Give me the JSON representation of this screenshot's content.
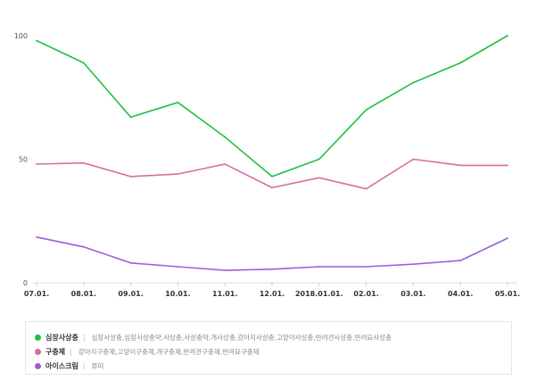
{
  "chart_data": {
    "type": "line",
    "categories": [
      "07.01.",
      "08.01.",
      "09.01.",
      "10.01.",
      "11.01.",
      "12.01.",
      "2018.01.01.",
      "02.01.",
      "03.01.",
      "04.01.",
      "05.01."
    ],
    "y_ticks": [
      "0",
      "50",
      "100"
    ],
    "ylim": [
      0,
      100
    ],
    "grid": false,
    "series": [
      {
        "name": "심장사상충",
        "color": "#20c040",
        "terms": "심장사상충,심장사상충약,사상충,사상충약,개사상충,강아지사상충,고양이사상충,반려견사상충,반려묘사상충",
        "values": [
          98,
          89,
          67,
          73,
          59,
          43,
          50,
          70,
          81,
          89,
          100
        ]
      },
      {
        "name": "구충제",
        "color": "#d86da0",
        "terms": "강아지구충제,고양이구충제,개구충제,반려견구충제,반려묘구충제",
        "values": [
          48,
          48.5,
          43,
          44,
          48,
          38.5,
          42.5,
          38,
          50,
          47.5,
          47.5
        ]
      },
      {
        "name": "아이스크림",
        "color": "#9a60d8",
        "terms": "쮸띠",
        "values": [
          18.5,
          14.5,
          8,
          6.5,
          5,
          5.5,
          6.5,
          6.5,
          7.5,
          9,
          18
        ]
      }
    ]
  }
}
